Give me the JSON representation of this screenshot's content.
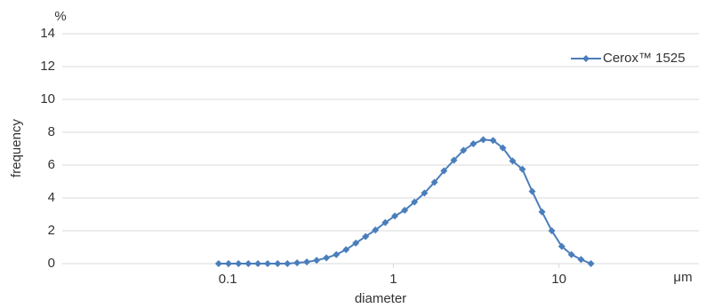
{
  "chart_data": {
    "type": "line",
    "x_label": "diameter",
    "x_unit": "μm",
    "y_label": "frequency",
    "y_unit": "%",
    "x_log": true,
    "grid": true,
    "legend": "top-right",
    "xlim": [
      0.01,
      70
    ],
    "xticks": [
      0.1,
      1,
      10
    ],
    "ylim": [
      0,
      14
    ],
    "yticks": [
      0,
      2,
      4,
      6,
      8,
      10,
      12,
      14
    ],
    "x": [
      0.088,
      0.101,
      0.116,
      0.133,
      0.152,
      0.174,
      0.2,
      0.229,
      0.262,
      0.3,
      0.344,
      0.394,
      0.452,
      0.518,
      0.593,
      0.68,
      0.779,
      0.893,
      1.02,
      1.17,
      1.34,
      1.54,
      1.77,
      2.02,
      2.32,
      2.65,
      3.04,
      3.49,
      4.0,
      4.58,
      5.25,
      6.01,
      6.89,
      7.9,
      9.05,
      10.4,
      11.9,
      13.6,
      15.6
    ],
    "series": [
      {
        "name": "Cerox™ 1525",
        "color": "#4a7ebb",
        "values": [
          0,
          0,
          0,
          0,
          0,
          0,
          0,
          0,
          0.05,
          0.1,
          0.2,
          0.35,
          0.55,
          0.85,
          1.25,
          1.65,
          2.05,
          2.5,
          2.9,
          3.25,
          3.75,
          4.3,
          4.95,
          5.65,
          6.3,
          6.9,
          7.3,
          7.55,
          7.5,
          7.05,
          6.25,
          5.75,
          4.4,
          3.15,
          2.0,
          1.05,
          0.55,
          0.25,
          0
        ]
      }
    ]
  }
}
